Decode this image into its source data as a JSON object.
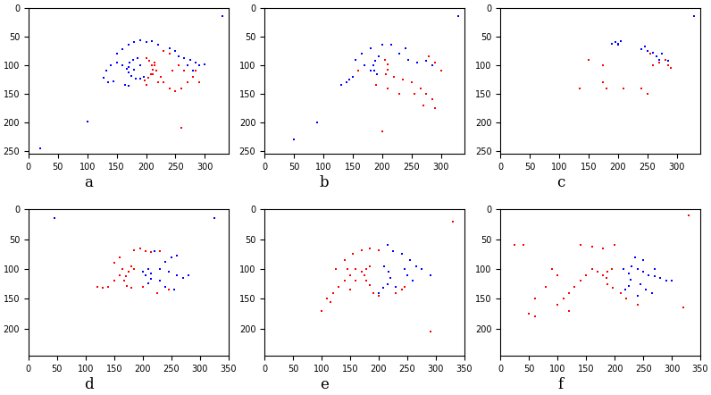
{
  "chart_data": [
    {
      "type": "scatter",
      "label": "a",
      "marker": "s",
      "xlim": [
        0,
        340
      ],
      "ylim": [
        255,
        0
      ],
      "xticks": [
        0,
        50,
        100,
        150,
        200,
        250,
        300
      ],
      "yticks": [
        0,
        50,
        100,
        150,
        200,
        250
      ],
      "series": [
        {
          "color": "#0000ff",
          "x": [
            185,
            178,
            172,
            170,
            171,
            175,
            182,
            190,
            196,
            168,
            160,
            150,
            140,
            132,
            128,
            135,
            145,
            165,
            170,
            150,
            160,
            170,
            180,
            190,
            200,
            210,
            220,
            240,
            250,
            255,
            265,
            275,
            285,
            290,
            300,
            270,
            280,
            180,
            190,
            330,
            100,
            20
          ],
          "values": [
            87,
            90,
            96,
            104,
            112,
            119,
            123,
            124,
            120,
            106,
            100,
            95,
            100,
            110,
            122,
            130,
            128,
            134,
            136,
            80,
            72,
            65,
            60,
            57,
            60,
            58,
            65,
            70,
            75,
            85,
            88,
            90,
            95,
            100,
            98,
            100,
            110,
            108,
            100,
            15,
            198,
            245
          ]
        },
        {
          "color": "#ff0000",
          "x": [
            200,
            206,
            210,
            211,
            208,
            203,
            198,
            215,
            218,
            225,
            230,
            240,
            250,
            260,
            270,
            280,
            285,
            290,
            245,
            255,
            265,
            230,
            240,
            220,
            200,
            260,
            215,
            212
          ],
          "values": [
            88,
            92,
            100,
            108,
            116,
            122,
            126,
            95,
            110,
            120,
            130,
            140,
            145,
            140,
            130,
            120,
            110,
            130,
            110,
            100,
            110,
            75,
            80,
            130,
            135,
            210,
            100,
            115
          ]
        }
      ]
    },
    {
      "type": "scatter",
      "label": "b",
      "marker": "s",
      "xlim": [
        0,
        340
      ],
      "ylim": [
        255,
        0
      ],
      "xticks": [
        0,
        50,
        100,
        150,
        200,
        250,
        300
      ],
      "yticks": [
        0,
        50,
        100,
        150,
        200,
        250
      ],
      "series": [
        {
          "color": "#0000ff",
          "x": [
            195,
            188,
            185,
            187,
            192,
            170,
            160,
            150,
            145,
            140,
            130,
            155,
            165,
            180,
            200,
            215,
            230,
            245,
            260,
            275,
            285,
            180,
            240,
            50,
            90,
            330
          ],
          "values": [
            85,
            92,
            100,
            110,
            116,
            100,
            110,
            120,
            125,
            130,
            135,
            90,
            80,
            70,
            65,
            65,
            80,
            90,
            95,
            92,
            100,
            110,
            70,
            230,
            200,
            15
          ]
        },
        {
          "color": "#ff0000",
          "x": [
            205,
            210,
            210,
            206,
            220,
            235,
            250,
            265,
            275,
            285,
            290,
            270,
            255,
            230,
            210,
            190,
            160,
            200,
            290,
            280,
            300
          ],
          "values": [
            90,
            98,
            108,
            115,
            120,
            125,
            130,
            140,
            150,
            160,
            175,
            170,
            150,
            150,
            140,
            135,
            110,
            215,
            95,
            85,
            110
          ]
        }
      ]
    },
    {
      "type": "scatter",
      "label": "c",
      "marker": "s",
      "xlim": [
        0,
        340
      ],
      "ylim": [
        255,
        0
      ],
      "xticks": [
        0,
        50,
        100,
        150,
        200,
        250,
        300
      ],
      "yticks": [
        0,
        50,
        100,
        150,
        200,
        250
      ],
      "series": [
        {
          "color": "#0000ff",
          "x": [
            195,
            200,
            205,
            240,
            250,
            260,
            265,
            275,
            270,
            285,
            200,
            190,
            245,
            330
          ],
          "values": [
            60,
            62,
            58,
            72,
            75,
            78,
            85,
            80,
            90,
            92,
            65,
            62,
            68,
            15
          ]
        },
        {
          "color": "#ff0000",
          "x": [
            280,
            285,
            270,
            290,
            260,
            175,
            180,
            250,
            240,
            135,
            150,
            175,
            210,
            255
          ],
          "values": [
            90,
            100,
            95,
            105,
            100,
            130,
            140,
            150,
            140,
            140,
            90,
            100,
            140,
            80
          ]
        }
      ]
    },
    {
      "type": "scatter",
      "label": "d",
      "marker": "s",
      "xlim": [
        0,
        350
      ],
      "ylim": [
        245,
        0
      ],
      "xticks": [
        0,
        50,
        100,
        150,
        200,
        250,
        300,
        350
      ],
      "yticks": [
        0,
        50,
        100,
        150,
        200
      ],
      "series": [
        {
          "color": "#ff0000",
          "x": [
            175,
            170,
            168,
            172,
            180,
            165,
            160,
            150,
            140,
            130,
            185,
            195,
            205,
            215,
            180,
            200,
            225,
            245,
            240,
            150,
            160,
            185,
            230,
            120
          ],
          "values": [
            105,
            112,
            120,
            128,
            132,
            100,
            110,
            120,
            130,
            132,
            68,
            66,
            70,
            72,
            95,
            130,
            140,
            135,
            130,
            90,
            80,
            100,
            70,
            130
          ]
        },
        {
          "color": "#0000ff",
          "x": [
            210,
            215,
            215,
            210,
            205,
            230,
            245,
            260,
            270,
            280,
            240,
            250,
            260,
            230,
            240,
            220,
            200,
            255,
            325,
            45
          ],
          "values": [
            100,
            108,
            116,
            124,
            110,
            100,
            105,
            110,
            115,
            110,
            88,
            80,
            78,
            120,
            130,
            70,
            105,
            135,
            15,
            15
          ]
        }
      ]
    },
    {
      "type": "scatter",
      "label": "e",
      "marker": "s",
      "xlim": [
        0,
        350
      ],
      "ylim": [
        245,
        0
      ],
      "xticks": [
        0,
        50,
        100,
        150,
        200,
        250,
        300,
        350
      ],
      "yticks": [
        0,
        50,
        100,
        150,
        200
      ],
      "series": [
        {
          "color": "#ff0000",
          "x": [
            185,
            178,
            175,
            178,
            185,
            170,
            160,
            150,
            140,
            130,
            120,
            110,
            125,
            140,
            155,
            170,
            185,
            200,
            190,
            200,
            230,
            240,
            245,
            100,
            115,
            150,
            160,
            145,
            290,
            330
          ],
          "values": [
            95,
            100,
            110,
            120,
            127,
            105,
            100,
            110,
            120,
            130,
            140,
            150,
            100,
            85,
            75,
            68,
            65,
            68,
            140,
            145,
            140,
            135,
            130,
            170,
            155,
            135,
            120,
            100,
            205,
            20
          ]
        },
        {
          "color": "#0000ff",
          "x": [
            210,
            218,
            220,
            216,
            208,
            200,
            225,
            240,
            255,
            265,
            275,
            290,
            250,
            260,
            230,
            215,
            245
          ],
          "values": [
            95,
            105,
            115,
            125,
            132,
            140,
            70,
            75,
            85,
            95,
            100,
            110,
            110,
            120,
            130,
            60,
            100
          ]
        }
      ]
    },
    {
      "type": "scatter",
      "label": "f",
      "marker": "s",
      "xlim": [
        0,
        350
      ],
      "ylim": [
        245,
        0
      ],
      "xticks": [
        0,
        50,
        100,
        150,
        200,
        250,
        300,
        350
      ],
      "yticks": [
        0,
        50,
        100,
        150,
        200
      ],
      "series": [
        {
          "color": "#ff0000",
          "x": [
            195,
            188,
            185,
            188,
            196,
            180,
            170,
            160,
            150,
            140,
            130,
            120,
            110,
            100,
            90,
            80,
            60,
            50,
            60,
            40,
            100,
            120,
            140,
            160,
            180,
            200,
            210,
            220,
            240,
            330,
            320,
            25
          ],
          "values": [
            100,
            105,
            115,
            125,
            132,
            110,
            105,
            100,
            110,
            120,
            130,
            140,
            150,
            110,
            100,
            130,
            150,
            175,
            180,
            60,
            160,
            170,
            60,
            62,
            65,
            60,
            140,
            150,
            160,
            10,
            165,
            60
          ]
        },
        {
          "color": "#0000ff",
          "x": [
            215,
            225,
            228,
            225,
            218,
            230,
            240,
            250,
            260,
            270,
            280,
            290,
            245,
            255,
            240,
            265,
            235,
            250,
            270,
            300
          ],
          "values": [
            100,
            108,
            118,
            128,
            135,
            95,
            100,
            105,
            110,
            112,
            115,
            120,
            125,
            135,
            145,
            140,
            80,
            85,
            100,
            120
          ]
        }
      ]
    }
  ]
}
